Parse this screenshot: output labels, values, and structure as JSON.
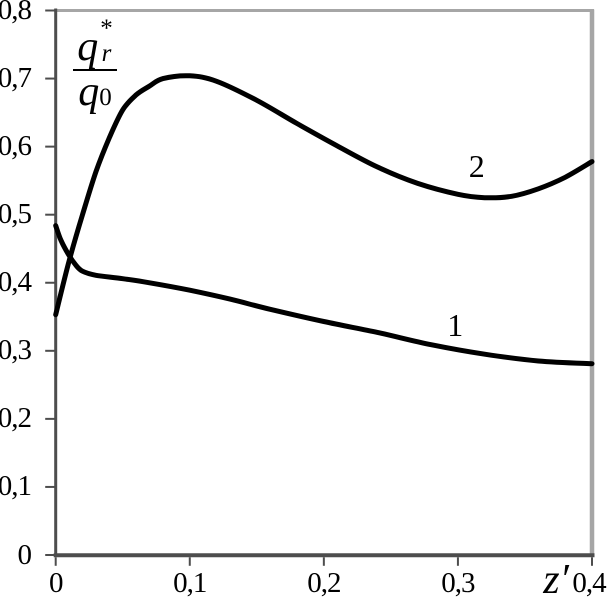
{
  "chart_data": {
    "type": "line",
    "title": "",
    "xlabel": "z′",
    "ylabel_fraction": {
      "numerator_base": "q",
      "numerator_sup": "*",
      "numerator_sub": "r",
      "denominator_base": "q",
      "denominator_sub": "0"
    },
    "xlim": [
      0,
      0.4
    ],
    "ylim": [
      0,
      0.8
    ],
    "grid": false,
    "legend_position": "inline-curve-labels",
    "xticks": {
      "values": [
        0,
        0.1,
        0.2,
        0.3,
        0.4
      ],
      "labels": [
        "0",
        "0,1",
        "0,2",
        "0,3",
        "0,4"
      ]
    },
    "yticks": {
      "values": [
        0,
        0.1,
        0.2,
        0.3,
        0.4,
        0.5,
        0.6,
        0.7,
        0.8
      ],
      "labels": [
        "0",
        "0,1",
        "0,2",
        "0,3",
        "0,4",
        "0,5",
        "0,6",
        "0,7",
        "0,8"
      ]
    },
    "series": [
      {
        "name": "1",
        "label": "1",
        "label_at": [
          0.298,
          0.338
        ],
        "points": [
          [
            0,
            0.484
          ],
          [
            0.004,
            0.462
          ],
          [
            0.01,
            0.44
          ],
          [
            0.015,
            0.426
          ],
          [
            0.02,
            0.417
          ],
          [
            0.03,
            0.411
          ],
          [
            0.05,
            0.406
          ],
          [
            0.07,
            0.4
          ],
          [
            0.1,
            0.389
          ],
          [
            0.13,
            0.376
          ],
          [
            0.16,
            0.361
          ],
          [
            0.2,
            0.343
          ],
          [
            0.24,
            0.327
          ],
          [
            0.28,
            0.309
          ],
          [
            0.32,
            0.295
          ],
          [
            0.36,
            0.285
          ],
          [
            0.4,
            0.281
          ]
        ]
      },
      {
        "name": "2",
        "label": "2",
        "label_at": [
          0.314,
          0.572
        ],
        "points": [
          [
            0,
            0.353
          ],
          [
            0.01,
            0.432
          ],
          [
            0.02,
            0.5
          ],
          [
            0.03,
            0.563
          ],
          [
            0.04,
            0.613
          ],
          [
            0.05,
            0.654
          ],
          [
            0.06,
            0.676
          ],
          [
            0.07,
            0.689
          ],
          [
            0.08,
            0.7
          ],
          [
            0.1,
            0.704
          ],
          [
            0.12,
            0.696
          ],
          [
            0.15,
            0.668
          ],
          [
            0.18,
            0.634
          ],
          [
            0.21,
            0.601
          ],
          [
            0.24,
            0.57
          ],
          [
            0.27,
            0.546
          ],
          [
            0.3,
            0.53
          ],
          [
            0.32,
            0.525
          ],
          [
            0.34,
            0.527
          ],
          [
            0.36,
            0.538
          ],
          [
            0.38,
            0.555
          ],
          [
            0.4,
            0.578
          ]
        ]
      }
    ],
    "colors": {
      "curve": "#000000",
      "axis": "#4d4d4d",
      "border": "#a6a6a6",
      "background": "#ffffff",
      "text": "#000000"
    }
  }
}
